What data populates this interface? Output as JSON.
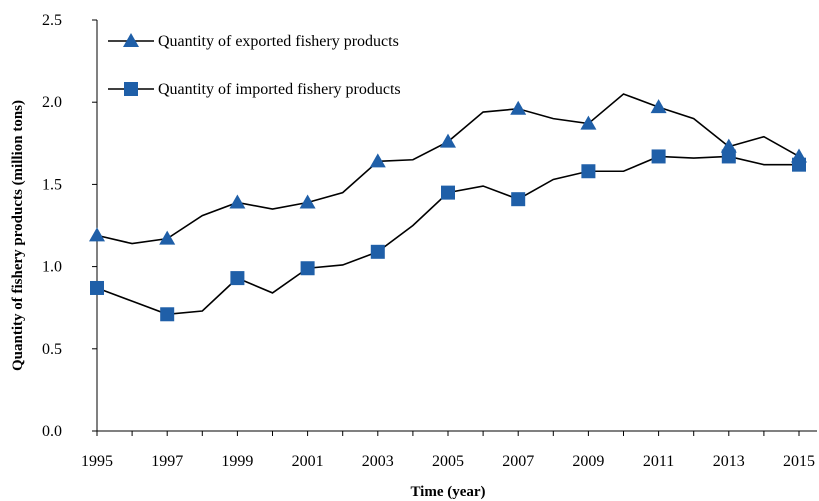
{
  "chart_data": {
    "type": "line",
    "xlabel": "Time (year)",
    "ylabel": "Quantity of fishery products (million tons)",
    "ylim": [
      0,
      2.5
    ],
    "yticks": [
      "0.0",
      "0.5",
      "1.0",
      "1.5",
      "2.0",
      "2.5"
    ],
    "xticks": [
      "1995",
      "1997",
      "1999",
      "2001",
      "2003",
      "2005",
      "2007",
      "2009",
      "2011",
      "2013",
      "2015"
    ],
    "x": [
      1995,
      1996,
      1997,
      1998,
      1999,
      2000,
      2001,
      2002,
      2003,
      2004,
      2005,
      2006,
      2007,
      2008,
      2009,
      2010,
      2011,
      2012,
      2013,
      2014,
      2015
    ],
    "grid": false,
    "legend_position": "top-left",
    "series": [
      {
        "name": "Quantity of exported fishery products",
        "marker": "triangle",
        "color": "#1f5fa8",
        "values": [
          1.19,
          1.14,
          1.17,
          1.31,
          1.39,
          1.35,
          1.39,
          1.45,
          1.64,
          1.65,
          1.76,
          1.94,
          1.96,
          1.9,
          1.87,
          2.05,
          1.97,
          1.9,
          1.73,
          1.79,
          1.67
        ]
      },
      {
        "name": "Quantity of imported fishery products",
        "marker": "square",
        "color": "#1f5fa8",
        "values": [
          0.87,
          0.79,
          0.71,
          0.73,
          0.93,
          0.84,
          0.99,
          1.01,
          1.09,
          1.25,
          1.45,
          1.49,
          1.41,
          1.53,
          1.58,
          1.58,
          1.67,
          1.66,
          1.67,
          1.62,
          1.62
        ]
      }
    ]
  }
}
